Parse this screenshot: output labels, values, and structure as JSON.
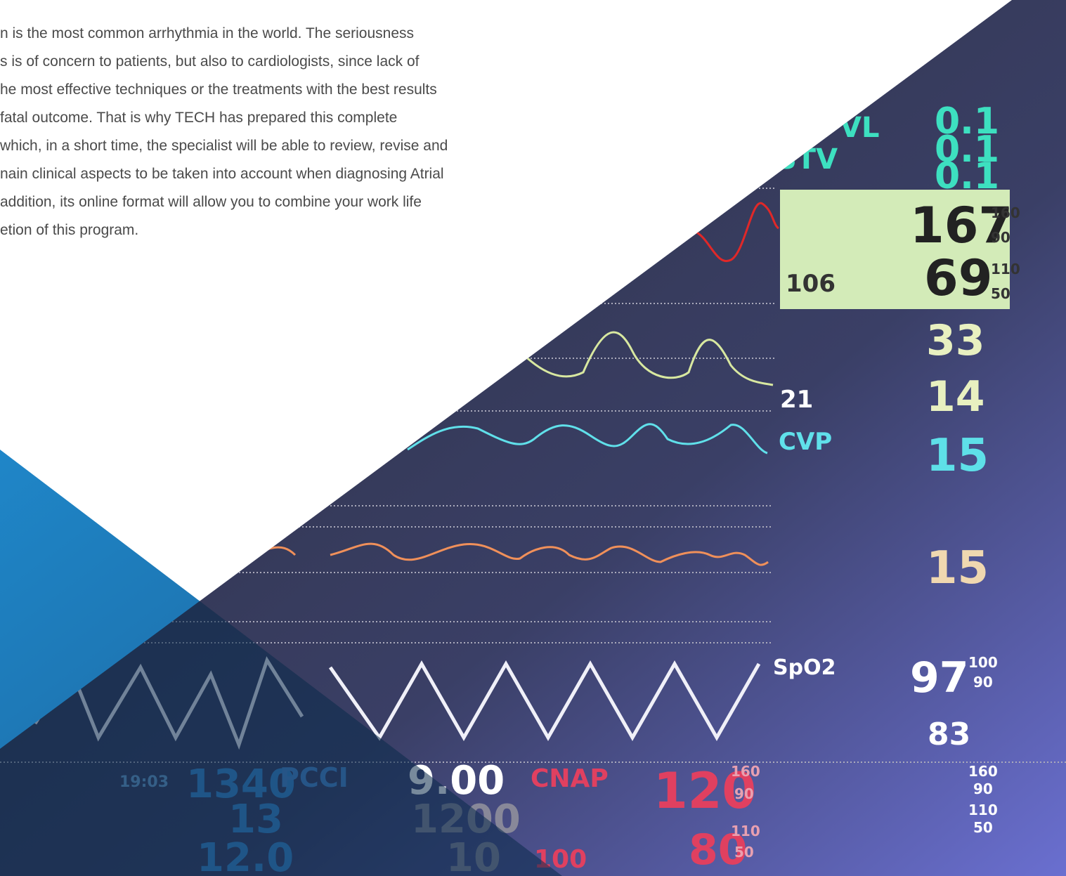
{
  "paragraph": {
    "lines": [
      "n is the most common arrhythmia in the world. The seriousness",
      "s is of concern to patients, but also to cardiologists, since lack of",
      "he most effective techniques or the treatments with the best results",
      " fatal outcome. That is why TECH has prepared this complete",
      "which, in a short time, the specialist will be able to review, revise and",
      "nain clinical aspects to be taken into account when diagnosing Atrial",
      "addition, its online format will allow you to combine your work life",
      "etion of this program."
    ]
  },
  "monitor": {
    "readings": [
      "0.1",
      "0.1",
      "0.1",
      "VL",
      "STV",
      "167",
      "160",
      "90",
      "69",
      "110",
      "50",
      "106",
      "33",
      "14",
      "21",
      "CVP",
      "15",
      "15",
      "SpO2",
      "97",
      "100",
      "90",
      "83",
      "19:03",
      "1340",
      "13",
      "12.0",
      "PCCI",
      "9.00",
      "1200",
      "10",
      "CNAP",
      "120",
      "160",
      "90",
      "80",
      "110",
      "50",
      "100",
      "160",
      "90",
      "110",
      "50"
    ]
  }
}
